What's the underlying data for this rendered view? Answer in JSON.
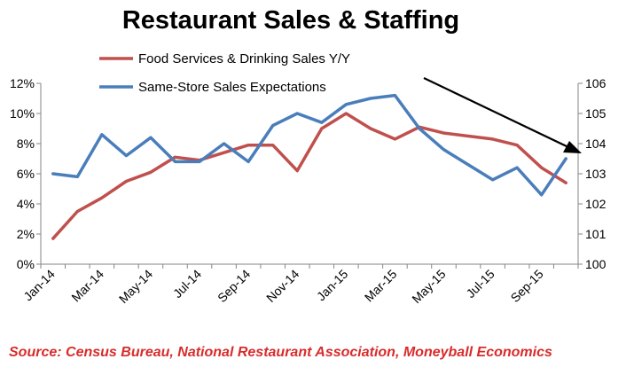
{
  "chart_data": {
    "type": "line",
    "title": "Restaurant Sales & Staffing",
    "source": "Source: Census Bureau, National Restaurant Association, Moneyball Economics",
    "x_labels": [
      "Jan-14",
      "Mar-14",
      "May-14",
      "Jul-14",
      "Sep-14",
      "Nov-14",
      "Jan-15",
      "Mar-15",
      "May-15",
      "Jul-15",
      "Sep-15"
    ],
    "x": [
      "Jan-14",
      "Feb-14",
      "Mar-14",
      "Apr-14",
      "May-14",
      "Jun-14",
      "Jul-14",
      "Aug-14",
      "Sep-14",
      "Oct-14",
      "Nov-14",
      "Dec-14",
      "Jan-15",
      "Feb-15",
      "Mar-15",
      "Apr-15",
      "May-15",
      "Jun-15",
      "Jul-15",
      "Aug-15",
      "Sep-15",
      "Oct-15"
    ],
    "y_left": {
      "ticks": [
        "0%",
        "2%",
        "4%",
        "6%",
        "8%",
        "10%",
        "12%"
      ],
      "lim": [
        0,
        12
      ]
    },
    "y_right": {
      "ticks": [
        "100",
        "101",
        "102",
        "103",
        "104",
        "105",
        "106"
      ],
      "lim": [
        100,
        106
      ]
    },
    "legend_position": "top-left",
    "grid": false,
    "series": [
      {
        "name": "Food Services & Drinking Sales Y/Y",
        "axis": "left",
        "color": "#c0504d",
        "values": [
          1.7,
          3.5,
          4.4,
          5.5,
          6.1,
          7.1,
          6.9,
          7.4,
          7.9,
          7.9,
          6.2,
          9.0,
          10.0,
          9.0,
          8.3,
          9.1,
          8.7,
          8.5,
          8.3,
          7.9,
          6.4,
          5.4
        ]
      },
      {
        "name": "Same-Store Sales Expectations",
        "axis": "right",
        "color": "#4a7ebb",
        "values": [
          103.0,
          102.9,
          104.3,
          103.6,
          104.2,
          103.4,
          103.4,
          104.0,
          103.4,
          104.6,
          105.0,
          104.7,
          105.3,
          105.5,
          105.6,
          104.5,
          103.8,
          103.3,
          102.8,
          103.2,
          102.3,
          103.5
        ]
      }
    ]
  }
}
